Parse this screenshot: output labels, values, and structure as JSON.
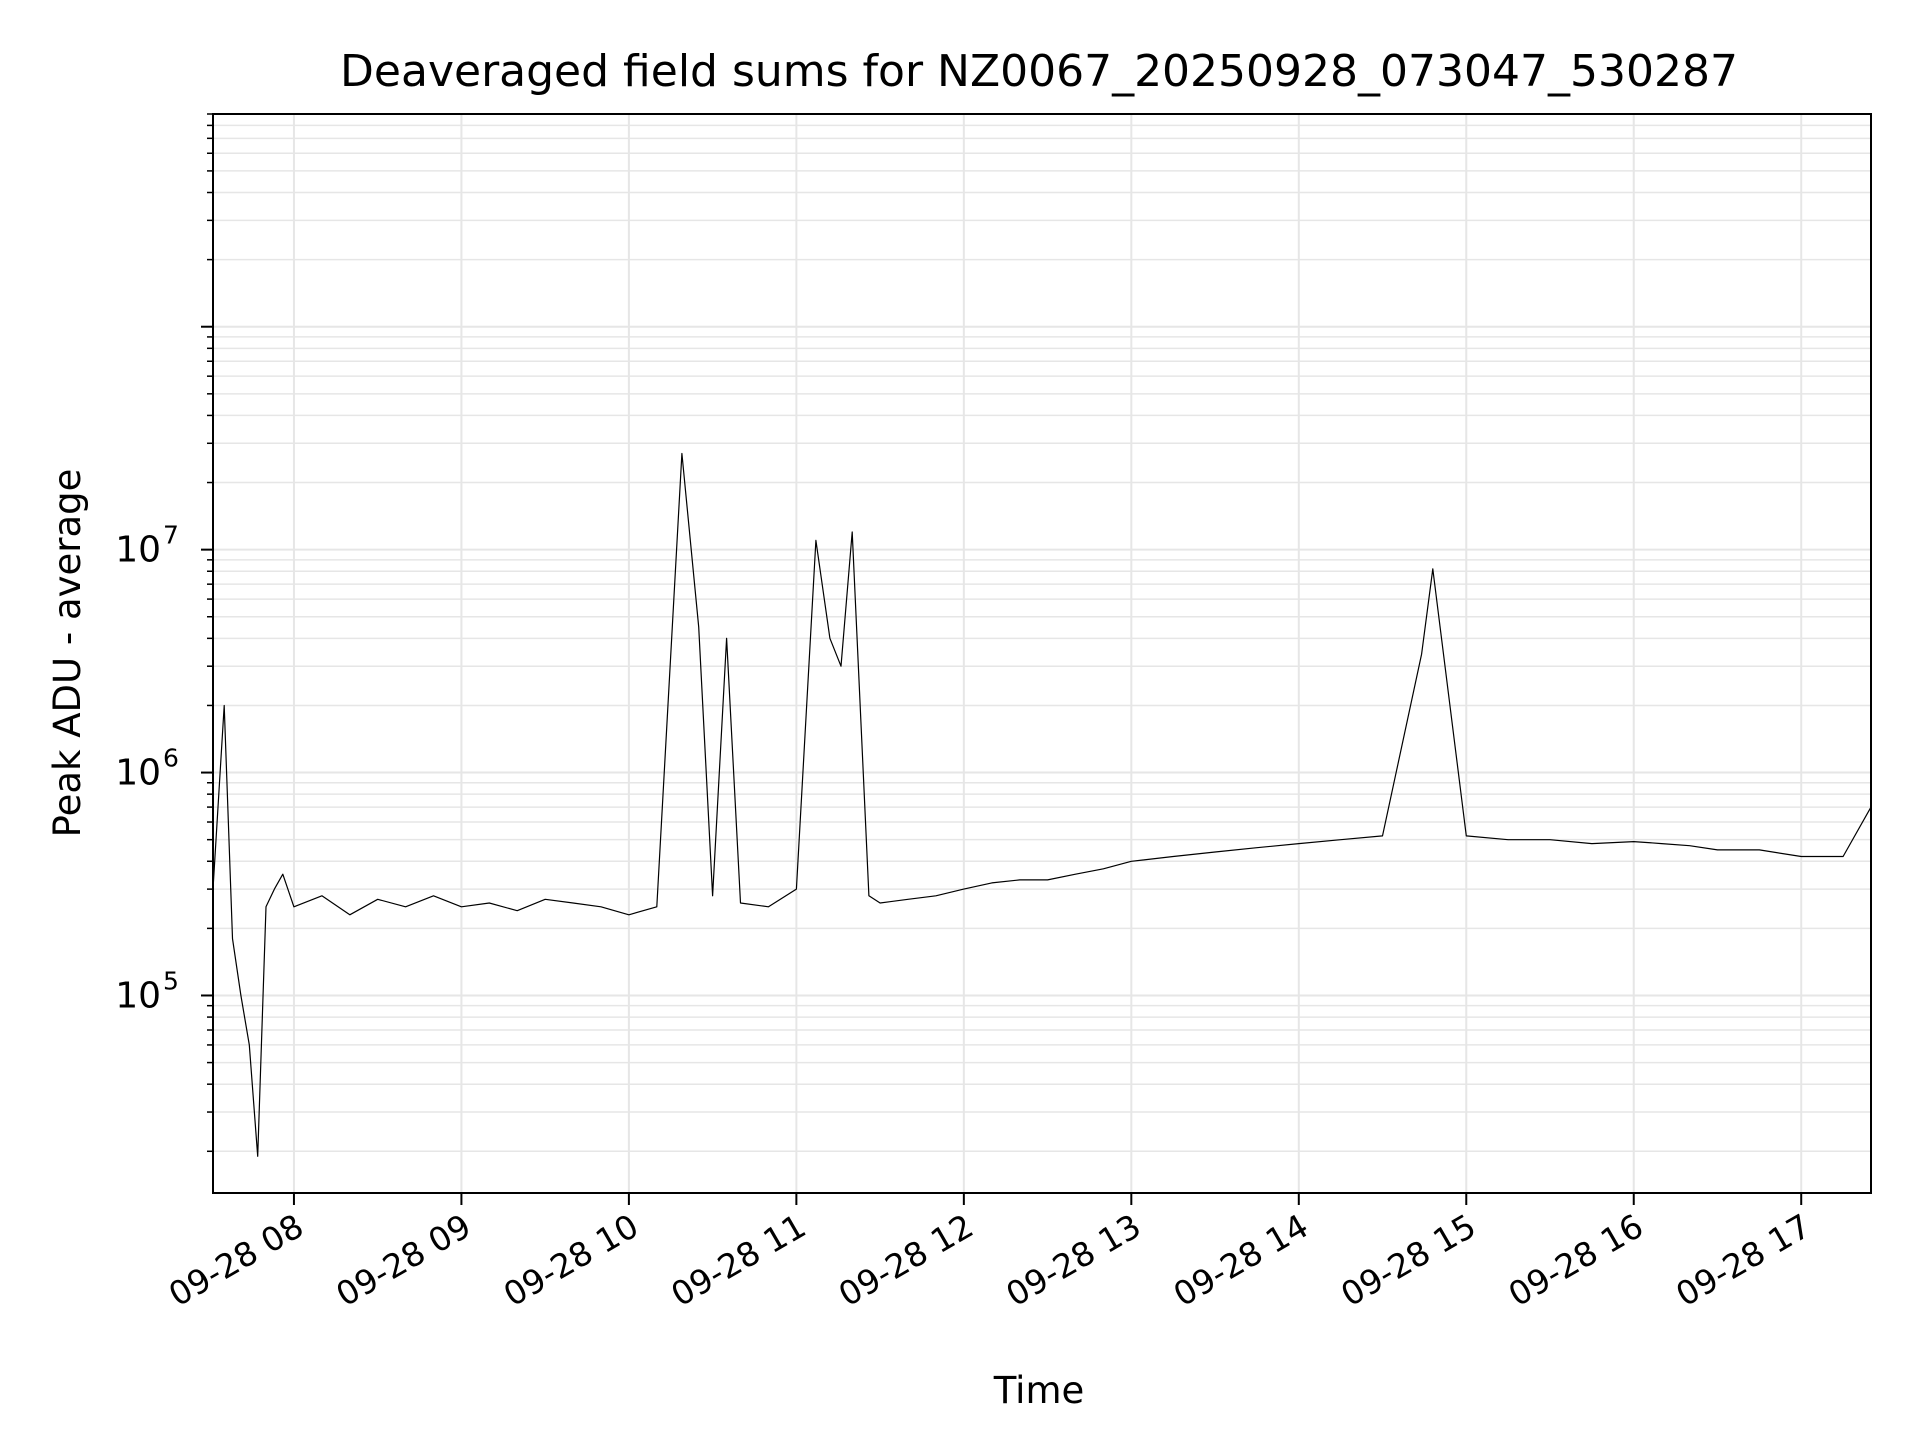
{
  "chart_data": {
    "type": "line",
    "title": "Deaveraged field sums for NZ0067_20250928_073047_530287",
    "xlabel": "Time",
    "ylabel": "Peak ADU - average",
    "y_scale": "log",
    "grid": true,
    "legend": "none",
    "line_color": "#000000",
    "grid_color": "#e6e6e6",
    "xlim": [
      "2025-09-28T07:31",
      "2025-09-28T17:25"
    ],
    "ylim": [
      13000,
      900000000
    ],
    "x_ticks": [
      {
        "value": "2025-09-28T08:00",
        "label": "09-28 08"
      },
      {
        "value": "2025-09-28T09:00",
        "label": "09-28 09"
      },
      {
        "value": "2025-09-28T10:00",
        "label": "09-28 10"
      },
      {
        "value": "2025-09-28T11:00",
        "label": "09-28 11"
      },
      {
        "value": "2025-09-28T12:00",
        "label": "09-28 12"
      },
      {
        "value": "2025-09-28T13:00",
        "label": "09-28 13"
      },
      {
        "value": "2025-09-28T14:00",
        "label": "09-28 14"
      },
      {
        "value": "2025-09-28T15:00",
        "label": "09-28 15"
      },
      {
        "value": "2025-09-28T16:00",
        "label": "09-28 16"
      },
      {
        "value": "2025-09-28T17:00",
        "label": "09-28 17"
      }
    ],
    "y_ticks": [
      {
        "value": 100000,
        "base": "10",
        "exp": "5"
      },
      {
        "value": 1000000,
        "base": "10",
        "exp": "6"
      },
      {
        "value": 10000000,
        "base": "10",
        "exp": "7"
      }
    ],
    "series": [
      {
        "x": [
          "2025-09-28T07:31",
          "2025-09-28T07:35",
          "2025-09-28T07:38",
          "2025-09-28T07:41",
          "2025-09-28T07:44",
          "2025-09-28T07:47",
          "2025-09-28T07:50",
          "2025-09-28T07:53",
          "2025-09-28T07:56",
          "2025-09-28T08:00",
          "2025-09-28T08:10",
          "2025-09-28T08:20",
          "2025-09-28T08:30",
          "2025-09-28T08:40",
          "2025-09-28T08:50",
          "2025-09-28T09:00",
          "2025-09-28T09:10",
          "2025-09-28T09:20",
          "2025-09-28T09:30",
          "2025-09-28T09:40",
          "2025-09-28T09:50",
          "2025-09-28T10:00",
          "2025-09-28T10:10",
          "2025-09-28T10:19",
          "2025-09-28T10:25",
          "2025-09-28T10:30",
          "2025-09-28T10:35",
          "2025-09-28T10:40",
          "2025-09-28T10:50",
          "2025-09-28T11:00",
          "2025-09-28T11:07",
          "2025-09-28T11:12",
          "2025-09-28T11:16",
          "2025-09-28T11:20",
          "2025-09-28T11:26",
          "2025-09-28T11:30",
          "2025-09-28T11:40",
          "2025-09-28T11:50",
          "2025-09-28T12:00",
          "2025-09-28T12:10",
          "2025-09-28T12:20",
          "2025-09-28T12:30",
          "2025-09-28T12:40",
          "2025-09-28T12:50",
          "2025-09-28T13:00",
          "2025-09-28T13:15",
          "2025-09-28T13:30",
          "2025-09-28T13:45",
          "2025-09-28T14:00",
          "2025-09-28T14:15",
          "2025-09-28T14:30",
          "2025-09-28T14:44",
          "2025-09-28T14:48",
          "2025-09-28T15:00",
          "2025-09-28T15:15",
          "2025-09-28T15:30",
          "2025-09-28T15:45",
          "2025-09-28T16:00",
          "2025-09-28T16:10",
          "2025-09-28T16:20",
          "2025-09-28T16:30",
          "2025-09-28T16:45",
          "2025-09-28T17:00",
          "2025-09-28T17:15",
          "2025-09-28T17:25"
        ],
        "y": [
          300000,
          2000000,
          180000,
          100000,
          60000,
          19000,
          250000,
          300000,
          350000,
          250000,
          280000,
          230000,
          270000,
          250000,
          280000,
          250000,
          260000,
          240000,
          270000,
          260000,
          250000,
          230000,
          250000,
          27000000,
          4500000,
          280000,
          4000000,
          260000,
          250000,
          300000,
          11000000,
          4000000,
          3000000,
          12000000,
          280000,
          260000,
          270000,
          280000,
          300000,
          320000,
          330000,
          330000,
          350000,
          370000,
          400000,
          420000,
          440000,
          460000,
          480000,
          500000,
          520000,
          3400000,
          8200000,
          520000,
          500000,
          500000,
          480000,
          490000,
          480000,
          470000,
          450000,
          450000,
          420000,
          420000,
          700000
        ]
      }
    ]
  }
}
